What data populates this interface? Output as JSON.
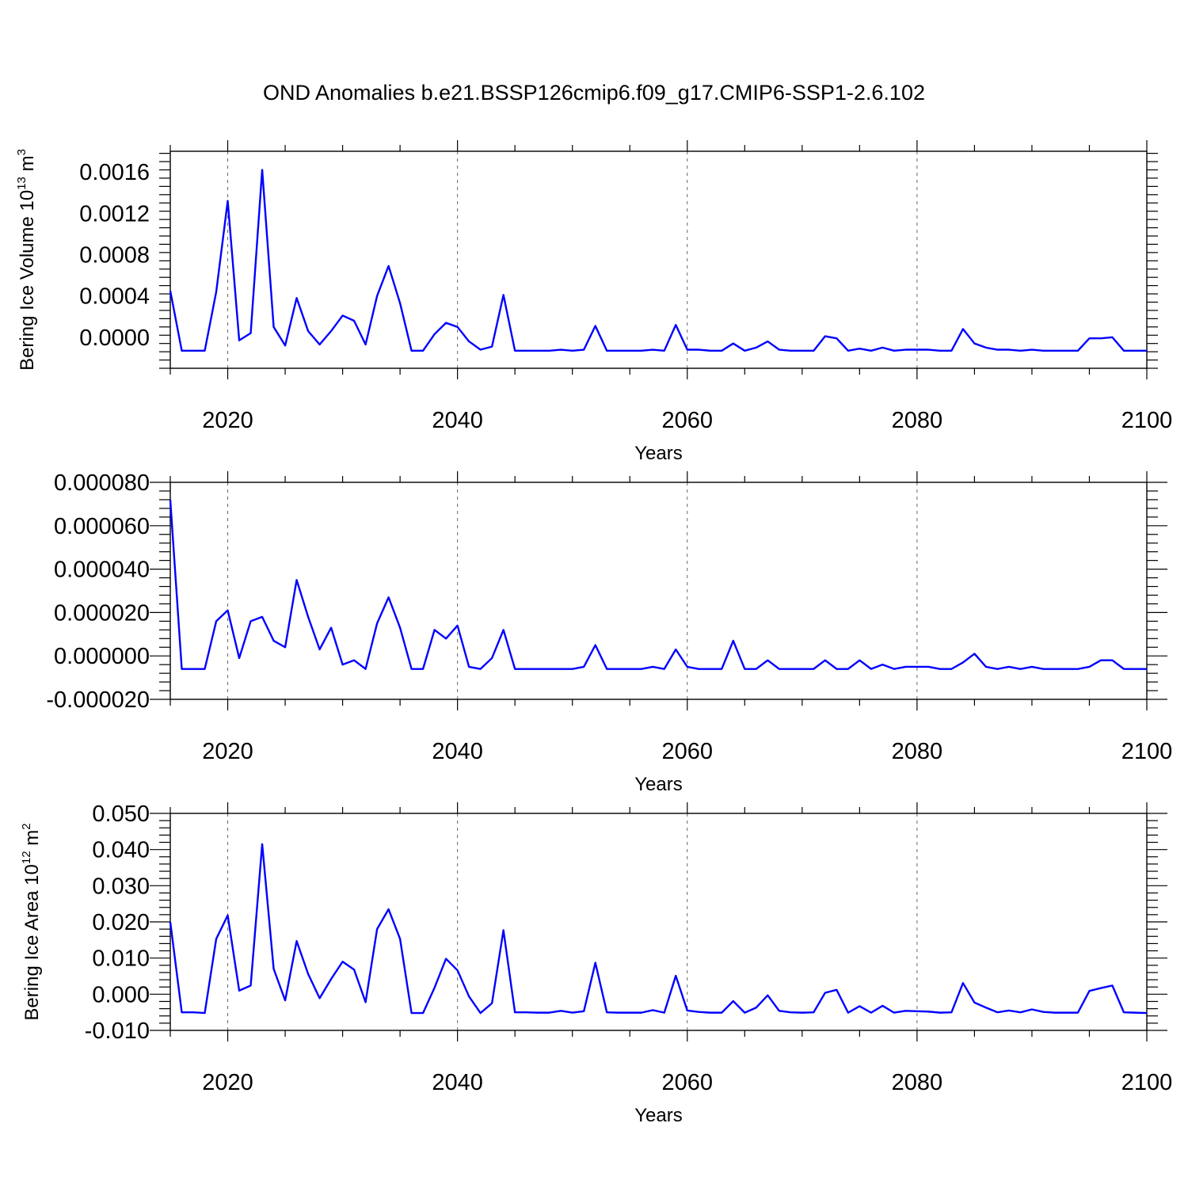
{
  "title": "OND Anomalies b.e21.BSSP126cmip6.f09_g17.CMIP6-SSP1-2.6.102",
  "line_color": "#0000ff",
  "chart_data": [
    {
      "type": "line",
      "xlabel": "Years",
      "ylabel": "Bering Ice Volume 10",
      "ylabel_exp": "13",
      "ylabel_unit": " m",
      "ylabel_unit_exp": "3",
      "xlim": [
        2015,
        2100
      ],
      "ylim": [
        -0.0003,
        0.0018
      ],
      "x_ticks": [
        "2020",
        "2040",
        "2060",
        "2080",
        "2100"
      ],
      "y_ticks": [
        "0.0000",
        "0.0004",
        "0.0008",
        "0.0012",
        "0.0016"
      ],
      "grid": "vertical dashed at major x ticks",
      "x": [
        2015,
        2016,
        2017,
        2018,
        2019,
        2020,
        2021,
        2022,
        2023,
        2024,
        2025,
        2026,
        2027,
        2028,
        2029,
        2030,
        2031,
        2032,
        2033,
        2034,
        2035,
        2036,
        2037,
        2038,
        2039,
        2040,
        2041,
        2042,
        2043,
        2044,
        2045,
        2046,
        2047,
        2048,
        2049,
        2050,
        2051,
        2052,
        2053,
        2054,
        2055,
        2056,
        2057,
        2058,
        2059,
        2060,
        2061,
        2062,
        2063,
        2064,
        2065,
        2066,
        2067,
        2068,
        2069,
        2070,
        2071,
        2072,
        2073,
        2074,
        2075,
        2076,
        2077,
        2078,
        2079,
        2080,
        2081,
        2082,
        2083,
        2084,
        2085,
        2086,
        2087,
        2088,
        2089,
        2090,
        2091,
        2092,
        2093,
        2094,
        2095,
        2096,
        2097,
        2098,
        2099,
        2100
      ],
      "values": [
        0.00045,
        -0.00013,
        -0.00013,
        -0.00013,
        0.00044,
        0.00132,
        -3e-05,
        4e-05,
        0.00162,
        0.0001,
        -8e-05,
        0.00038,
        6e-05,
        -7e-05,
        6e-05,
        0.00021,
        0.00016,
        -7e-05,
        0.0004,
        0.00069,
        0.00033,
        -0.00013,
        -0.00013,
        3e-05,
        0.00014,
        0.0001,
        -4e-05,
        -0.00012,
        -9e-05,
        0.00041,
        -0.00013,
        -0.00013,
        -0.00013,
        -0.00013,
        -0.00012,
        -0.00013,
        -0.00012,
        0.00011,
        -0.00013,
        -0.00013,
        -0.00013,
        -0.00013,
        -0.00012,
        -0.00013,
        0.00012,
        -0.00012,
        -0.00012,
        -0.00013,
        -0.00013,
        -6e-05,
        -0.00013,
        -0.0001,
        -4e-05,
        -0.00012,
        -0.00013,
        -0.00013,
        -0.00013,
        1e-05,
        -1e-05,
        -0.00013,
        -0.00011,
        -0.00013,
        -0.0001,
        -0.00013,
        -0.00012,
        -0.00012,
        -0.00012,
        -0.00013,
        -0.00013,
        8e-05,
        -6e-05,
        -0.0001,
        -0.00012,
        -0.00012,
        -0.00013,
        -0.00012,
        -0.00013,
        -0.00013,
        -0.00013,
        -0.00013,
        -1e-05,
        -1e-05,
        0.0,
        -0.00013,
        -0.00013,
        -0.00013
      ]
    },
    {
      "type": "line",
      "xlabel": "Years",
      "ylabel": "",
      "xlim": [
        2015,
        2100
      ],
      "ylim": [
        -2e-05,
        8e-05
      ],
      "x_ticks": [
        "2020",
        "2040",
        "2060",
        "2080",
        "2100"
      ],
      "y_ticks": [
        "-0.000020",
        "0.000000",
        "0.000020",
        "0.000040",
        "0.000060",
        "0.000080"
      ],
      "grid": "vertical dashed at major x ticks",
      "x": [
        2015,
        2016,
        2017,
        2018,
        2019,
        2020,
        2021,
        2022,
        2023,
        2024,
        2025,
        2026,
        2027,
        2028,
        2029,
        2030,
        2031,
        2032,
        2033,
        2034,
        2035,
        2036,
        2037,
        2038,
        2039,
        2040,
        2041,
        2042,
        2043,
        2044,
        2045,
        2046,
        2047,
        2048,
        2049,
        2050,
        2051,
        2052,
        2053,
        2054,
        2055,
        2056,
        2057,
        2058,
        2059,
        2060,
        2061,
        2062,
        2063,
        2064,
        2065,
        2066,
        2067,
        2068,
        2069,
        2070,
        2071,
        2072,
        2073,
        2074,
        2075,
        2076,
        2077,
        2078,
        2079,
        2080,
        2081,
        2082,
        2083,
        2084,
        2085,
        2086,
        2087,
        2088,
        2089,
        2090,
        2091,
        2092,
        2093,
        2094,
        2095,
        2096,
        2097,
        2098,
        2099,
        2100
      ],
      "values": [
        7.2e-05,
        -6e-06,
        -6e-06,
        -6e-06,
        1.6e-05,
        2.1e-05,
        -1e-06,
        1.6e-05,
        1.8e-05,
        7e-06,
        4e-06,
        3.5e-05,
        1.8e-05,
        3e-06,
        1.3e-05,
        -4e-06,
        -2e-06,
        -6e-06,
        1.5e-05,
        2.7e-05,
        1.3e-05,
        -6e-06,
        -6e-06,
        1.2e-05,
        8e-06,
        1.4e-05,
        -5e-06,
        -6e-06,
        -1e-06,
        1.2e-05,
        -6e-06,
        -6e-06,
        -6e-06,
        -6e-06,
        -6e-06,
        -6e-06,
        -5e-06,
        5e-06,
        -6e-06,
        -6e-06,
        -6e-06,
        -6e-06,
        -5e-06,
        -6e-06,
        3e-06,
        -5e-06,
        -6e-06,
        -6e-06,
        -6e-06,
        7e-06,
        -6e-06,
        -6e-06,
        -2e-06,
        -6e-06,
        -6e-06,
        -6e-06,
        -6e-06,
        -2e-06,
        -6e-06,
        -6e-06,
        -2e-06,
        -6e-06,
        -4e-06,
        -6e-06,
        -5e-06,
        -5e-06,
        -5e-06,
        -6e-06,
        -6e-06,
        -3e-06,
        1e-06,
        -5e-06,
        -6e-06,
        -5e-06,
        -6e-06,
        -5e-06,
        -6e-06,
        -6e-06,
        -6e-06,
        -6e-06,
        -5e-06,
        -2e-06,
        -2e-06,
        -6e-06,
        -6e-06,
        -6e-06
      ]
    },
    {
      "type": "line",
      "xlabel": "Years",
      "ylabel": "Bering Ice Area 10",
      "ylabel_exp": "12",
      "ylabel_unit": " m",
      "ylabel_unit_exp": "2",
      "xlim": [
        2015,
        2100
      ],
      "ylim": [
        -0.01,
        0.05
      ],
      "x_ticks": [
        "2020",
        "2040",
        "2060",
        "2080",
        "2100"
      ],
      "y_ticks": [
        "-0.010",
        "0.000",
        "0.010",
        "0.020",
        "0.030",
        "0.040",
        "0.050"
      ],
      "grid": "vertical dashed at major x ticks",
      "x": [
        2015,
        2016,
        2017,
        2018,
        2019,
        2020,
        2021,
        2022,
        2023,
        2024,
        2025,
        2026,
        2027,
        2028,
        2029,
        2030,
        2031,
        2032,
        2033,
        2034,
        2035,
        2036,
        2037,
        2038,
        2039,
        2040,
        2041,
        2042,
        2043,
        2044,
        2045,
        2046,
        2047,
        2048,
        2049,
        2050,
        2051,
        2052,
        2053,
        2054,
        2055,
        2056,
        2057,
        2058,
        2059,
        2060,
        2061,
        2062,
        2063,
        2064,
        2065,
        2066,
        2067,
        2068,
        2069,
        2070,
        2071,
        2072,
        2073,
        2074,
        2075,
        2076,
        2077,
        2078,
        2079,
        2080,
        2081,
        2082,
        2083,
        2084,
        2085,
        2086,
        2087,
        2088,
        2089,
        2090,
        2091,
        2092,
        2093,
        2094,
        2095,
        2096,
        2097,
        2098,
        2099,
        2100
      ],
      "values": [
        0.02,
        -0.005,
        -0.005,
        -0.0052,
        0.0153,
        0.0218,
        0.001,
        0.0024,
        0.0415,
        0.007,
        -0.0017,
        0.0147,
        0.0056,
        -0.0011,
        0.0042,
        0.009,
        0.0068,
        -0.0022,
        0.018,
        0.0235,
        0.0153,
        -0.0052,
        -0.0052,
        0.0018,
        0.0098,
        0.0066,
        -0.0006,
        -0.0052,
        -0.0025,
        0.0177,
        -0.005,
        -0.005,
        -0.0051,
        -0.0051,
        -0.0046,
        -0.0051,
        -0.0047,
        0.0087,
        -0.005,
        -0.0051,
        -0.0051,
        -0.0051,
        -0.0044,
        -0.0051,
        0.0051,
        -0.0045,
        -0.0049,
        -0.0051,
        -0.0051,
        -0.0019,
        -0.0051,
        -0.0037,
        -0.0003,
        -0.0046,
        -0.005,
        -0.0051,
        -0.005,
        0.0004,
        0.0012,
        -0.0051,
        -0.0033,
        -0.0051,
        -0.0032,
        -0.0051,
        -0.0046,
        -0.0047,
        -0.0048,
        -0.0051,
        -0.005,
        0.0031,
        -0.0023,
        -0.0037,
        -0.005,
        -0.0045,
        -0.005,
        -0.0042,
        -0.0049,
        -0.0051,
        -0.0051,
        -0.0051,
        0.0009,
        0.0017,
        0.0024,
        -0.005,
        -0.0051,
        -0.0052
      ]
    }
  ]
}
